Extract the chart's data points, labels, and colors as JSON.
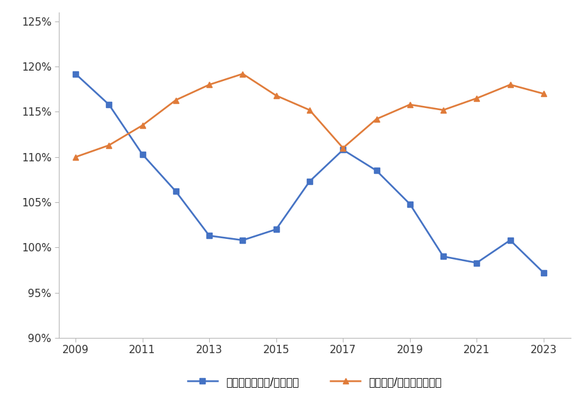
{
  "years_blue": [
    2009,
    2010,
    2011,
    2012,
    2013,
    2014,
    2015,
    2016,
    2017,
    2018,
    2019,
    2020,
    2021,
    2022,
    2023
  ],
  "values_blue": [
    1.192,
    1.158,
    1.103,
    1.062,
    1.013,
    1.008,
    1.02,
    1.073,
    1.108,
    1.085,
    1.048,
    0.99,
    0.983,
    1.008,
    0.972
  ],
  "years_orange": [
    2009,
    2010,
    2011,
    2012,
    2013,
    2014,
    2015,
    2016,
    2017,
    2018,
    2019,
    2020,
    2021,
    2022,
    2023
  ],
  "values_orange": [
    1.1,
    1.113,
    1.135,
    1.163,
    1.18,
    1.192,
    1.168,
    1.152,
    1.11,
    1.142,
    1.158,
    1.152,
    1.165,
    1.18,
    1.17
  ],
  "color_blue": "#4472C4",
  "color_orange": "#E07B39",
  "marker_blue": "s",
  "marker_orange": "^",
  "label_blue": "全球从中国进口/海关出口",
  "label_orange": "海关进口/全球向中国出口",
  "ylim_bottom": 0.9,
  "ylim_top": 1.26,
  "yticks": [
    0.9,
    0.95,
    1.0,
    1.05,
    1.1,
    1.15,
    1.2,
    1.25
  ],
  "ytick_labels": [
    "90%",
    "95%",
    "100%",
    "105%",
    "110%",
    "115%",
    "120%",
    "125%"
  ],
  "xlim_left": 2008.5,
  "xlim_right": 2023.8,
  "xticks": [
    2009,
    2011,
    2013,
    2015,
    2017,
    2019,
    2021,
    2023
  ],
  "background_color": "#FFFFFF",
  "line_width": 1.8,
  "marker_size": 6
}
